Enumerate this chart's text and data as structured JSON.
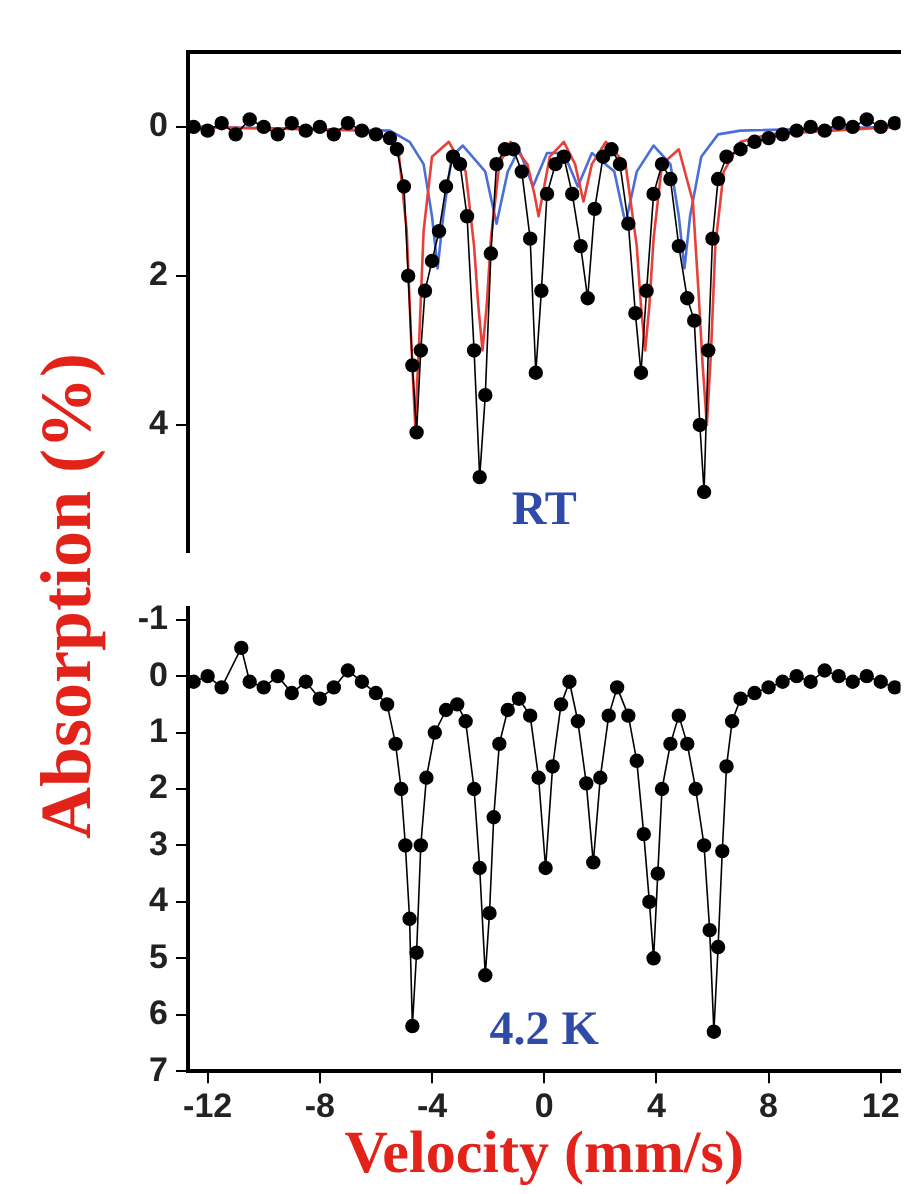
{
  "chart_data": [
    {
      "type": "line",
      "ylabel": "Absorption (%)",
      "annotations": [
        "RT"
      ],
      "xlim": [
        -12.7,
        12.7
      ],
      "ylim": [
        5.7,
        -1
      ],
      "yticks": [
        0,
        2,
        4
      ],
      "tick_labels": "y",
      "grid": false,
      "legend": false,
      "series": [
        {
          "marker": "circle",
          "line_style": "solid",
          "color": "#000000",
          "x": [
            -12.5,
            -12,
            -11.5,
            -11,
            -10.5,
            -10,
            -9.5,
            -9,
            -8.5,
            -8,
            -7.5,
            -7,
            -6.5,
            -6,
            -5.5,
            -5.25,
            -5.0,
            -4.85,
            -4.7,
            -4.55,
            -4.4,
            -4.25,
            -4.0,
            -3.75,
            -3.5,
            -3.25,
            -3.0,
            -2.75,
            -2.5,
            -2.3,
            -2.1,
            -1.9,
            -1.7,
            -1.4,
            -1.1,
            -0.8,
            -0.5,
            -0.3,
            -0.1,
            0.1,
            0.4,
            0.7,
            1.0,
            1.3,
            1.55,
            1.8,
            2.1,
            2.4,
            2.7,
            3.0,
            3.25,
            3.45,
            3.65,
            3.9,
            4.2,
            4.5,
            4.8,
            5.1,
            5.35,
            5.55,
            5.7,
            5.85,
            6.0,
            6.2,
            6.5,
            7,
            7.5,
            8,
            8.5,
            9,
            9.5,
            10,
            10.5,
            11,
            11.5,
            12,
            12.5
          ],
          "values": [
            0.0,
            0.05,
            -0.05,
            0.1,
            -0.1,
            0.0,
            0.1,
            -0.05,
            0.05,
            0.0,
            0.1,
            -0.05,
            0.05,
            0.1,
            0.15,
            0.3,
            0.8,
            2.0,
            3.2,
            4.1,
            3.0,
            2.2,
            1.8,
            1.4,
            0.8,
            0.4,
            0.5,
            1.2,
            3.0,
            4.7,
            3.6,
            1.7,
            0.5,
            0.3,
            0.3,
            0.6,
            1.5,
            3.3,
            2.2,
            0.9,
            0.5,
            0.4,
            0.9,
            1.6,
            2.3,
            1.1,
            0.4,
            0.3,
            0.5,
            1.3,
            2.5,
            3.3,
            2.2,
            0.9,
            0.5,
            0.7,
            1.6,
            2.3,
            2.6,
            4.0,
            4.9,
            3.0,
            1.5,
            0.7,
            0.4,
            0.3,
            0.2,
            0.15,
            0.1,
            0.05,
            0.0,
            0.05,
            -0.05,
            0.0,
            -0.1,
            0.0,
            -0.05
          ]
        },
        {
          "marker": "none",
          "line_style": "solid",
          "color": "#e8403a",
          "x": [
            -12.5,
            -6,
            -5.2,
            -4.9,
            -4.75,
            -4.6,
            -4.45,
            -4.3,
            -4.0,
            -3.4,
            -2.8,
            -2.5,
            -2.35,
            -2.2,
            -2.05,
            -1.9,
            -1.6,
            -1.2,
            -0.6,
            -0.35,
            -0.2,
            -0.05,
            0.2,
            0.7,
            1.1,
            1.4,
            1.7,
            2.2,
            2.9,
            3.3,
            3.45,
            3.6,
            3.75,
            3.9,
            4.2,
            4.8,
            5.3,
            5.5,
            5.65,
            5.8,
            5.95,
            6.1,
            6.4,
            7,
            8,
            12.5
          ],
          "values": [
            0,
            0.05,
            0.3,
            1.4,
            2.8,
            4.0,
            2.8,
            1.4,
            0.4,
            0.2,
            0.6,
            1.6,
            2.4,
            3.0,
            2.4,
            1.5,
            0.5,
            0.2,
            0.5,
            0.9,
            1.2,
            0.9,
            0.4,
            0.2,
            0.5,
            1.0,
            0.5,
            0.2,
            0.5,
            1.6,
            2.4,
            3.0,
            2.4,
            1.5,
            0.5,
            0.3,
            1.0,
            2.2,
            3.2,
            4.0,
            3.0,
            1.6,
            0.6,
            0.2,
            0.1,
            0
          ]
        },
        {
          "marker": "none",
          "line_style": "solid",
          "color": "#4a6fd8",
          "x": [
            -12.5,
            -5.5,
            -4.8,
            -4.3,
            -4.0,
            -3.8,
            -3.6,
            -3.3,
            -2.9,
            -2.1,
            -1.7,
            -1.3,
            -0.9,
            -0.4,
            0.1,
            0.7,
            1.2,
            1.7,
            2.5,
            2.9,
            3.3,
            3.9,
            4.5,
            4.8,
            5.0,
            5.2,
            5.6,
            6.2,
            7,
            12.5
          ],
          "values": [
            0,
            0.05,
            0.2,
            0.5,
            1.2,
            1.9,
            1.2,
            0.4,
            0.25,
            0.6,
            1.3,
            0.6,
            0.3,
            0.8,
            0.35,
            0.35,
            0.8,
            0.35,
            0.6,
            1.3,
            0.6,
            0.25,
            0.5,
            1.2,
            1.9,
            1.2,
            0.4,
            0.1,
            0.05,
            0
          ]
        }
      ]
    },
    {
      "type": "line",
      "xlabel": "Velocity (mm/s)",
      "annotations": [
        "4.2 K"
      ],
      "xlim": [
        -12.7,
        12.7
      ],
      "xticks": [
        -12,
        -8,
        -4,
        0,
        4,
        8,
        12
      ],
      "ylim": [
        7,
        -1.2
      ],
      "yticks": [
        -1,
        0,
        1,
        2,
        3,
        4,
        5,
        6,
        7
      ],
      "grid": false,
      "legend": false,
      "series": [
        {
          "marker": "circle",
          "line_style": "solid",
          "color": "#000000",
          "x": [
            -12.5,
            -12,
            -11.5,
            -10.8,
            -10.5,
            -10,
            -9.5,
            -9,
            -8.5,
            -8,
            -7.5,
            -7,
            -6.5,
            -6,
            -5.6,
            -5.3,
            -5.1,
            -4.95,
            -4.8,
            -4.7,
            -4.55,
            -4.4,
            -4.2,
            -3.9,
            -3.5,
            -3.1,
            -2.8,
            -2.5,
            -2.3,
            -2.1,
            -1.95,
            -1.8,
            -1.6,
            -1.3,
            -0.9,
            -0.5,
            -0.2,
            0.05,
            0.3,
            0.6,
            0.9,
            1.2,
            1.5,
            1.75,
            2.0,
            2.3,
            2.6,
            3.0,
            3.3,
            3.55,
            3.75,
            3.9,
            4.05,
            4.2,
            4.5,
            4.8,
            5.1,
            5.4,
            5.7,
            5.9,
            6.05,
            6.2,
            6.35,
            6.5,
            6.7,
            7,
            7.5,
            8,
            8.5,
            9,
            9.5,
            10,
            10.5,
            11,
            11.5,
            12,
            12.5
          ],
          "values": [
            0.1,
            0.0,
            0.2,
            -0.5,
            0.1,
            0.2,
            0.0,
            0.3,
            0.1,
            0.4,
            0.2,
            -0.1,
            0.1,
            0.3,
            0.5,
            1.2,
            2.0,
            3.0,
            4.3,
            6.2,
            4.9,
            3.0,
            1.8,
            1.0,
            0.6,
            0.5,
            0.8,
            2.0,
            3.4,
            5.3,
            4.2,
            2.5,
            1.2,
            0.6,
            0.4,
            0.7,
            1.8,
            3.4,
            1.6,
            0.5,
            0.1,
            0.8,
            1.9,
            3.3,
            1.8,
            0.7,
            0.2,
            0.7,
            1.5,
            2.8,
            4.0,
            5.0,
            3.5,
            2.0,
            1.2,
            0.7,
            1.2,
            2.0,
            3.0,
            4.5,
            6.3,
            4.8,
            3.1,
            1.6,
            0.8,
            0.4,
            0.3,
            0.2,
            0.1,
            0.0,
            0.1,
            -0.1,
            0.0,
            0.1,
            0.0,
            0.1,
            0.2
          ]
        }
      ]
    }
  ]
}
